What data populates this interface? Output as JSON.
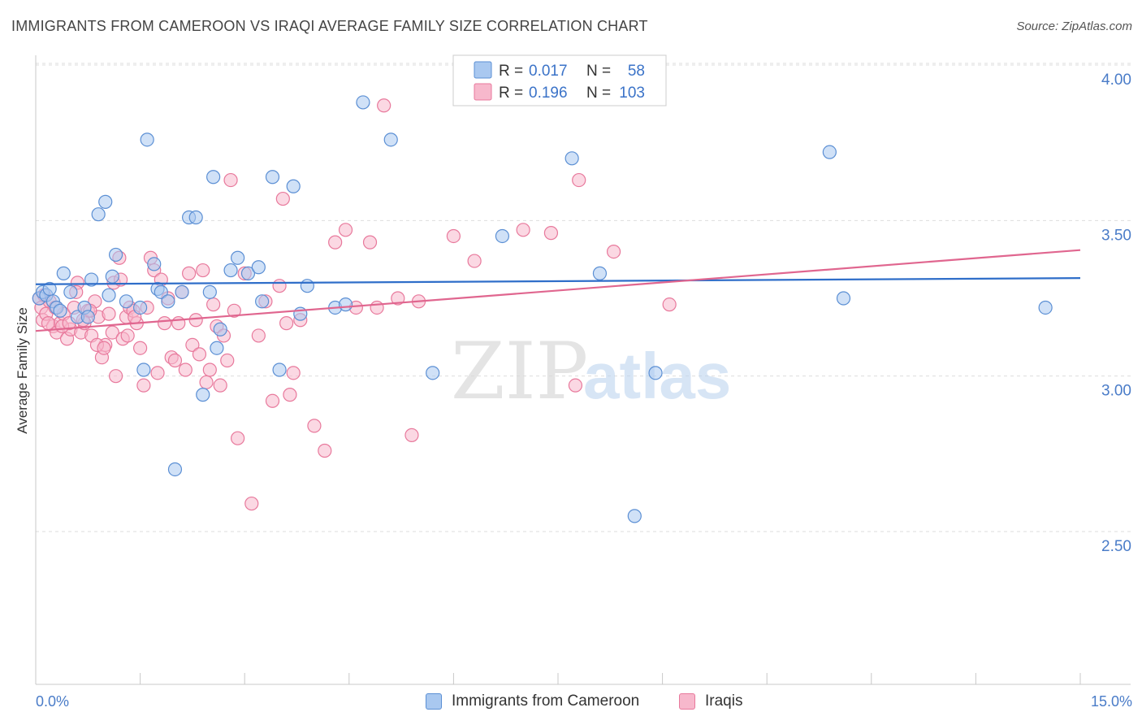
{
  "header": {
    "title": "IMMIGRANTS FROM CAMEROON VS IRAQI AVERAGE FAMILY SIZE CORRELATION CHART",
    "source": "Source: ZipAtlas.com"
  },
  "watermark": {
    "zip": "ZIP",
    "atlas": "atlas"
  },
  "colors": {
    "blue_fill": "#a9c8f0",
    "blue_stroke": "#5b8fd4",
    "blue_line": "#2f6ec9",
    "pink_fill": "#f7b8cc",
    "pink_stroke": "#e8799c",
    "pink_line": "#e0668f",
    "grid": "#dddddd",
    "axis_label": "#4a7cc8"
  },
  "chart_data": {
    "type": "scatter",
    "title": "IMMIGRANTS FROM CAMEROON VS IRAQI AVERAGE FAMILY SIZE CORRELATION CHART",
    "xlabel": "",
    "ylabel": "Average Family Size",
    "xlim": [
      0,
      15
    ],
    "ylim": [
      2.1,
      4.05
    ],
    "x_tick_labels": {
      "min": "0.0%",
      "max": "15.0%"
    },
    "y_ticks": [
      2.5,
      3.0,
      3.5,
      4.0
    ],
    "y_tick_labels": [
      "2.50",
      "3.00",
      "3.50",
      "4.00"
    ],
    "grid": true,
    "legend_position": "top-center",
    "stats": [
      {
        "r_label": "R =",
        "r": "0.017",
        "n_label": "N =",
        "n": "58"
      },
      {
        "r_label": "R =",
        "r": "0.196",
        "n_label": "N =",
        "n": "103"
      }
    ],
    "series": [
      {
        "name": "Immigrants from Cameroon",
        "trend": {
          "x": [
            0,
            15
          ],
          "y": [
            3.295,
            3.315
          ]
        },
        "points": [
          [
            0.05,
            3.25
          ],
          [
            0.1,
            3.27
          ],
          [
            0.15,
            3.26
          ],
          [
            0.2,
            3.28
          ],
          [
            0.25,
            3.24
          ],
          [
            0.3,
            3.22
          ],
          [
            0.4,
            3.33
          ],
          [
            0.5,
            3.27
          ],
          [
            0.6,
            3.19
          ],
          [
            0.7,
            3.22
          ],
          [
            0.8,
            3.31
          ],
          [
            0.9,
            3.52
          ],
          [
            1.0,
            3.56
          ],
          [
            1.05,
            3.26
          ],
          [
            1.1,
            3.32
          ],
          [
            1.15,
            3.39
          ],
          [
            1.3,
            3.24
          ],
          [
            1.5,
            3.22
          ],
          [
            1.6,
            3.76
          ],
          [
            1.7,
            3.36
          ],
          [
            1.75,
            3.28
          ],
          [
            1.8,
            3.27
          ],
          [
            1.9,
            3.24
          ],
          [
            2.0,
            2.7
          ],
          [
            2.1,
            3.27
          ],
          [
            2.2,
            3.51
          ],
          [
            2.3,
            3.51
          ],
          [
            2.4,
            2.94
          ],
          [
            2.5,
            3.27
          ],
          [
            2.55,
            3.64
          ],
          [
            2.6,
            3.09
          ],
          [
            2.65,
            3.15
          ],
          [
            2.8,
            3.34
          ],
          [
            2.9,
            3.38
          ],
          [
            3.05,
            3.33
          ],
          [
            3.2,
            3.35
          ],
          [
            3.25,
            3.24
          ],
          [
            3.4,
            3.64
          ],
          [
            3.5,
            3.02
          ],
          [
            3.7,
            3.61
          ],
          [
            3.8,
            3.2
          ],
          [
            3.9,
            3.29
          ],
          [
            4.3,
            3.22
          ],
          [
            4.45,
            3.23
          ],
          [
            4.7,
            3.88
          ],
          [
            5.1,
            3.76
          ],
          [
            5.7,
            3.01
          ],
          [
            6.7,
            3.45
          ],
          [
            7.7,
            3.7
          ],
          [
            8.1,
            3.33
          ],
          [
            8.6,
            2.55
          ],
          [
            8.9,
            3.01
          ],
          [
            11.4,
            3.72
          ],
          [
            11.6,
            3.25
          ],
          [
            14.5,
            3.22
          ],
          [
            1.55,
            3.02
          ],
          [
            0.35,
            3.21
          ],
          [
            0.75,
            3.19
          ]
        ]
      },
      {
        "name": "Iraqis",
        "trend": {
          "x": [
            0,
            15
          ],
          "y": [
            3.145,
            3.405
          ]
        },
        "points": [
          [
            0.05,
            3.25
          ],
          [
            0.08,
            3.22
          ],
          [
            0.1,
            3.18
          ],
          [
            0.12,
            3.26
          ],
          [
            0.15,
            3.2
          ],
          [
            0.2,
            3.24
          ],
          [
            0.25,
            3.16
          ],
          [
            0.3,
            3.14
          ],
          [
            0.35,
            3.17
          ],
          [
            0.4,
            3.2
          ],
          [
            0.45,
            3.12
          ],
          [
            0.5,
            3.15
          ],
          [
            0.55,
            3.22
          ],
          [
            0.6,
            3.3
          ],
          [
            0.65,
            3.14
          ],
          [
            0.7,
            3.17
          ],
          [
            0.75,
            3.21
          ],
          [
            0.8,
            3.13
          ],
          [
            0.85,
            3.24
          ],
          [
            0.9,
            3.19
          ],
          [
            0.95,
            3.06
          ],
          [
            1.0,
            3.1
          ],
          [
            1.05,
            3.2
          ],
          [
            1.1,
            3.14
          ],
          [
            1.15,
            3.0
          ],
          [
            1.2,
            3.38
          ],
          [
            1.25,
            3.12
          ],
          [
            1.3,
            3.19
          ],
          [
            1.35,
            3.22
          ],
          [
            1.4,
            3.21
          ],
          [
            1.45,
            3.17
          ],
          [
            1.5,
            3.09
          ],
          [
            1.55,
            2.97
          ],
          [
            1.6,
            3.22
          ],
          [
            1.65,
            3.38
          ],
          [
            1.7,
            3.34
          ],
          [
            1.75,
            3.01
          ],
          [
            1.8,
            3.31
          ],
          [
            1.85,
            3.17
          ],
          [
            1.9,
            3.25
          ],
          [
            1.95,
            3.06
          ],
          [
            2.0,
            3.05
          ],
          [
            2.05,
            3.17
          ],
          [
            2.1,
            3.27
          ],
          [
            2.15,
            3.02
          ],
          [
            2.2,
            3.33
          ],
          [
            2.25,
            3.1
          ],
          [
            2.3,
            3.18
          ],
          [
            2.35,
            3.07
          ],
          [
            2.4,
            3.34
          ],
          [
            2.45,
            2.98
          ],
          [
            2.5,
            3.02
          ],
          [
            2.55,
            3.23
          ],
          [
            2.6,
            3.16
          ],
          [
            2.65,
            2.97
          ],
          [
            2.7,
            3.13
          ],
          [
            2.75,
            3.05
          ],
          [
            2.8,
            3.63
          ],
          [
            2.85,
            3.21
          ],
          [
            2.9,
            2.8
          ],
          [
            3.0,
            3.33
          ],
          [
            3.1,
            2.59
          ],
          [
            3.2,
            3.13
          ],
          [
            3.3,
            3.24
          ],
          [
            3.4,
            2.92
          ],
          [
            3.5,
            3.29
          ],
          [
            3.55,
            3.57
          ],
          [
            3.6,
            3.17
          ],
          [
            3.65,
            2.94
          ],
          [
            3.7,
            3.01
          ],
          [
            3.8,
            3.18
          ],
          [
            4.0,
            2.84
          ],
          [
            4.15,
            2.76
          ],
          [
            4.3,
            3.43
          ],
          [
            4.45,
            3.47
          ],
          [
            4.6,
            3.22
          ],
          [
            4.8,
            3.43
          ],
          [
            4.9,
            3.22
          ],
          [
            5.0,
            3.87
          ],
          [
            5.2,
            3.25
          ],
          [
            5.4,
            2.81
          ],
          [
            5.5,
            3.24
          ],
          [
            6.0,
            3.45
          ],
          [
            6.3,
            3.37
          ],
          [
            7.0,
            3.47
          ],
          [
            7.4,
            3.46
          ],
          [
            7.8,
            3.63
          ],
          [
            8.3,
            3.4
          ],
          [
            9.1,
            3.23
          ],
          [
            0.18,
            3.17
          ],
          [
            0.28,
            3.22
          ],
          [
            0.38,
            3.16
          ],
          [
            0.48,
            3.17
          ],
          [
            0.58,
            3.27
          ],
          [
            0.68,
            3.18
          ],
          [
            0.78,
            3.21
          ],
          [
            0.88,
            3.1
          ],
          [
            0.98,
            3.09
          ],
          [
            1.12,
            3.3
          ],
          [
            1.22,
            3.31
          ],
          [
            1.32,
            3.13
          ],
          [
            1.42,
            3.19
          ],
          [
            7.75,
            2.97
          ]
        ]
      }
    ]
  },
  "bottom_legend": [
    {
      "label": "Immigrants from Cameroon"
    },
    {
      "label": "Iraqis"
    }
  ]
}
